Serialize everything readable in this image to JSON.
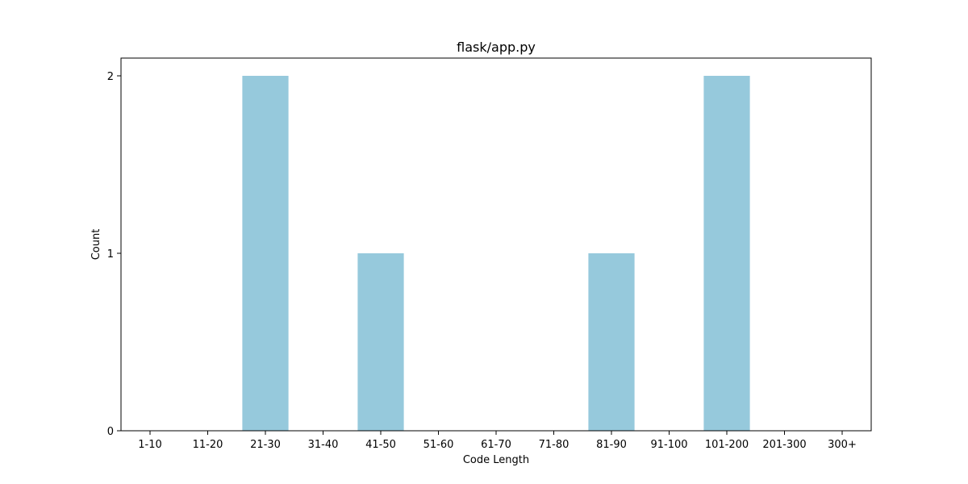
{
  "chart_data": {
    "type": "bar",
    "title": "flask/app.py",
    "xlabel": "Code Length",
    "ylabel": "Count",
    "categories": [
      "1-10",
      "11-20",
      "21-30",
      "31-40",
      "41-50",
      "51-60",
      "61-70",
      "71-80",
      "81-90",
      "91-100",
      "101-200",
      "201-300",
      "300+"
    ],
    "values": [
      0,
      0,
      2,
      0,
      1,
      0,
      0,
      0,
      1,
      0,
      2,
      0,
      0
    ],
    "ylim": [
      0,
      2.1
    ],
    "yticks": [
      0,
      1,
      2
    ],
    "grid": false,
    "legend": false,
    "bar_color": "#96c9dc"
  }
}
